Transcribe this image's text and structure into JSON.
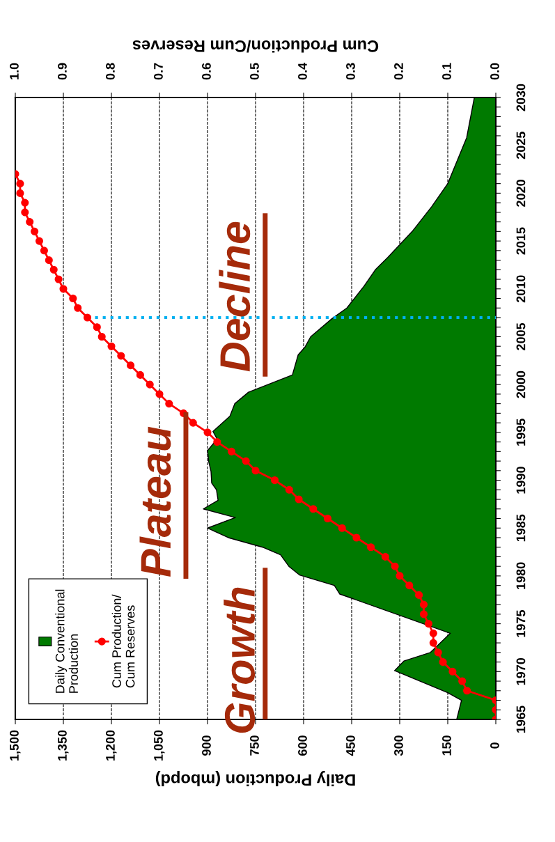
{
  "chart_data": {
    "type": "area",
    "orientation": "horizontal",
    "xlabel": "Daily Production (mbopd)",
    "x2label": "Cum Production/Cum Reserves",
    "series": [
      {
        "name": "Daily Conventional\nProduction",
        "color": "#007a00",
        "x": [
          1965,
          1967,
          1967.8,
          1970.1,
          1971.1,
          1972,
          1974,
          1978.1,
          1979,
          1980.1,
          1981,
          1982.2,
          1983,
          1984,
          1985,
          1986.1,
          1987,
          1987.9,
          1989,
          1989.7,
          1990.9,
          1991.9,
          1993.1,
          1994.3,
          1995.1,
          1996.7,
          1998,
          1999.2,
          2001,
          2003.1,
          2003.9,
          2005,
          2006.9,
          2008,
          2010.3,
          2012,
          2013.3,
          2016,
          2018.6,
          2021,
          2025.8,
          2030
        ],
        "values": [
          122,
          107,
          150,
          316,
          287,
          204,
          142,
          487,
          504,
          613,
          646,
          672,
          728,
          835,
          900,
          813,
          913,
          867,
          872,
          887,
          889,
          896,
          900,
          870,
          883,
          830,
          815,
          772,
          635,
          617,
          596,
          578,
          511,
          465,
          411,
          376,
          337,
          261,
          200,
          150,
          91,
          67
        ]
      },
      {
        "name": "Cum Production/\nCum Reserves",
        "type": "line",
        "axis": "x2",
        "color": "#ff0000",
        "marker": "circle",
        "line_style": "solid",
        "x": [
          1965,
          1966,
          1967,
          1968,
          1969,
          1970,
          1971,
          1972,
          1973,
          1974,
          1975,
          1976,
          1977,
          1978,
          1979,
          1980,
          1981,
          1982,
          1983,
          1984,
          1985,
          1986,
          1987,
          1988,
          1989,
          1990,
          1991,
          1992,
          1993,
          1994,
          1995,
          1996,
          1997,
          1998,
          1999,
          2000,
          2001,
          2002,
          2003,
          2004,
          2005,
          2006,
          2007,
          2008,
          2009,
          2010,
          2011,
          2012,
          2013,
          2014,
          2015,
          2016,
          2017,
          2018,
          2019,
          2020,
          2021,
          2022
        ],
        "values": [
          0,
          0,
          0,
          0.06,
          0.07,
          0.09,
          0.11,
          0.12,
          0.13,
          0.13,
          0.14,
          0.15,
          0.15,
          0.16,
          0.18,
          0.2,
          0.21,
          0.23,
          0.26,
          0.29,
          0.32,
          0.35,
          0.38,
          0.41,
          0.43,
          0.46,
          0.5,
          0.52,
          0.55,
          0.58,
          0.6,
          0.63,
          0.65,
          0.68,
          0.7,
          0.72,
          0.74,
          0.76,
          0.78,
          0.8,
          0.82,
          0.83,
          0.85,
          0.87,
          0.88,
          0.9,
          0.91,
          0.92,
          0.93,
          0.94,
          0.95,
          0.96,
          0.97,
          0.98,
          0.98,
          0.99,
          0.99,
          1.0
        ]
      }
    ],
    "xlim": [
      1500,
      0
    ],
    "xticks": [
      {
        "value": 1500,
        "label": "1,500"
      },
      {
        "value": 1350,
        "label": "1,350"
      },
      {
        "value": 1200,
        "label": "1,200"
      },
      {
        "value": 1050,
        "label": "1,050"
      },
      900,
      750,
      600,
      450,
      300,
      150,
      0
    ],
    "x2lim": [
      1.0,
      0.0
    ],
    "x2ticks": [
      {
        "value": 1.0,
        "label": "1.0"
      },
      {
        "value": 0.9,
        "label": "0.9"
      },
      {
        "value": 0.8,
        "label": "0.8"
      },
      {
        "value": 0.7,
        "label": "0.7"
      },
      {
        "value": 0.6,
        "label": "0.6"
      },
      {
        "value": 0.5,
        "label": "0.5"
      },
      {
        "value": 0.4,
        "label": "0.4"
      },
      {
        "value": 0.3,
        "label": "0.3"
      },
      {
        "value": 0.2,
        "label": "0.2"
      },
      {
        "value": 0.1,
        "label": "0.1"
      },
      {
        "value": 0.0,
        "label": "0.0"
      }
    ],
    "ylim": [
      1965,
      2030
    ],
    "yticks": [
      1965,
      {
        "value": 1966,
        "label": null
      },
      {
        "value": 1967,
        "label": null
      },
      {
        "value": 1968,
        "label": null
      },
      {
        "value": 1969,
        "label": null
      },
      1970,
      {
        "value": 1971,
        "label": null
      },
      {
        "value": 1972,
        "label": null
      },
      {
        "value": 1973,
        "label": null
      },
      {
        "value": 1974,
        "label": null
      },
      1975,
      {
        "value": 1976,
        "label": null
      },
      {
        "value": 1977,
        "label": null
      },
      {
        "value": 1978,
        "label": null
      },
      {
        "value": 1979,
        "label": null
      },
      1980,
      {
        "value": 1981,
        "label": null
      },
      {
        "value": 1982,
        "label": null
      },
      {
        "value": 1983,
        "label": null
      },
      {
        "value": 1984,
        "label": null
      },
      1985,
      {
        "value": 1986,
        "label": null
      },
      {
        "value": 1987,
        "label": null
      },
      {
        "value": 1988,
        "label": null
      },
      {
        "value": 1989,
        "label": null
      },
      1990,
      {
        "value": 1991,
        "label": null
      },
      {
        "value": 1992,
        "label": null
      },
      {
        "value": 1993,
        "label": null
      },
      {
        "value": 1994,
        "label": null
      },
      1995,
      {
        "value": 1996,
        "label": null
      },
      {
        "value": 1997,
        "label": null
      },
      {
        "value": 1998,
        "label": null
      },
      {
        "value": 1999,
        "label": null
      },
      2000,
      {
        "value": 2001,
        "label": null
      },
      {
        "value": 2002,
        "label": null
      },
      {
        "value": 2003,
        "label": null
      },
      {
        "value": 2004,
        "label": null
      },
      2005,
      {
        "value": 2006,
        "label": null
      },
      {
        "value": 2007,
        "label": null
      },
      {
        "value": 2008,
        "label": null
      },
      {
        "value": 2009,
        "label": null
      },
      2010,
      {
        "value": 2011,
        "label": null
      },
      {
        "value": 2012,
        "label": null
      },
      {
        "value": 2013,
        "label": null
      },
      {
        "value": 2014,
        "label": null
      },
      2015,
      {
        "value": 2016,
        "label": null
      },
      {
        "value": 2017,
        "label": null
      },
      {
        "value": 2018,
        "label": null
      },
      {
        "value": 2019,
        "label": null
      },
      2020,
      {
        "value": 2021,
        "label": null
      },
      {
        "value": 2022,
        "label": null
      },
      {
        "value": 2023,
        "label": null
      },
      {
        "value": 2024,
        "label": null
      },
      2025,
      {
        "value": 2026,
        "label": null
      },
      {
        "value": 2027,
        "label": null
      },
      {
        "value": 2028,
        "label": null
      },
      {
        "value": 2029,
        "label": null
      },
      2030
    ],
    "ref_lines": [
      {
        "axis": "y",
        "value": 2007,
        "color": "#00b0f0",
        "line_style": "dotted"
      }
    ],
    "annotations": [
      "Growth",
      "Plateau",
      "Decline"
    ],
    "grid": "x",
    "legend": "bottom left"
  }
}
